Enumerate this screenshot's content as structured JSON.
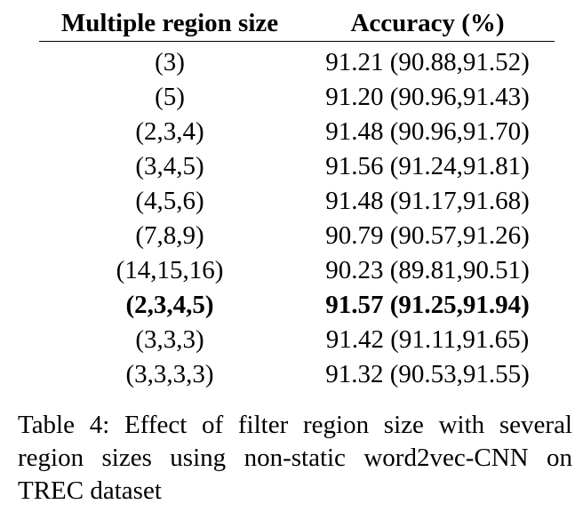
{
  "table": {
    "headers": [
      "Multiple region size",
      "Accuracy (%)"
    ],
    "rows": [
      {
        "region": "(3)",
        "accuracy": "91.21 (90.88,91.52)",
        "bold": false
      },
      {
        "region": "(5)",
        "accuracy": "91.20 (90.96,91.43)",
        "bold": false
      },
      {
        "region": "(2,3,4)",
        "accuracy": "91.48 (90.96,91.70)",
        "bold": false
      },
      {
        "region": "(3,4,5)",
        "accuracy": "91.56 (91.24,91.81)",
        "bold": false
      },
      {
        "region": "(4,5,6)",
        "accuracy": "91.48 (91.17,91.68)",
        "bold": false
      },
      {
        "region": "(7,8,9)",
        "accuracy": "90.79 (90.57,91.26)",
        "bold": false
      },
      {
        "region": "(14,15,16)",
        "accuracy": "90.23 (89.81,90.51)",
        "bold": false
      },
      {
        "region": "(2,3,4,5)",
        "accuracy": "91.57 (91.25,91.94)",
        "bold": true
      },
      {
        "region": "(3,3,3)",
        "accuracy": "91.42 (91.11,91.65)",
        "bold": false
      },
      {
        "region": "(3,3,3,3)",
        "accuracy": "91.32 (90.53,91.55)",
        "bold": false
      }
    ]
  },
  "caption": {
    "text": "Table 4:  Effect of filter region size with several region sizes using non-static word2vec-CNN on TREC dataset"
  }
}
